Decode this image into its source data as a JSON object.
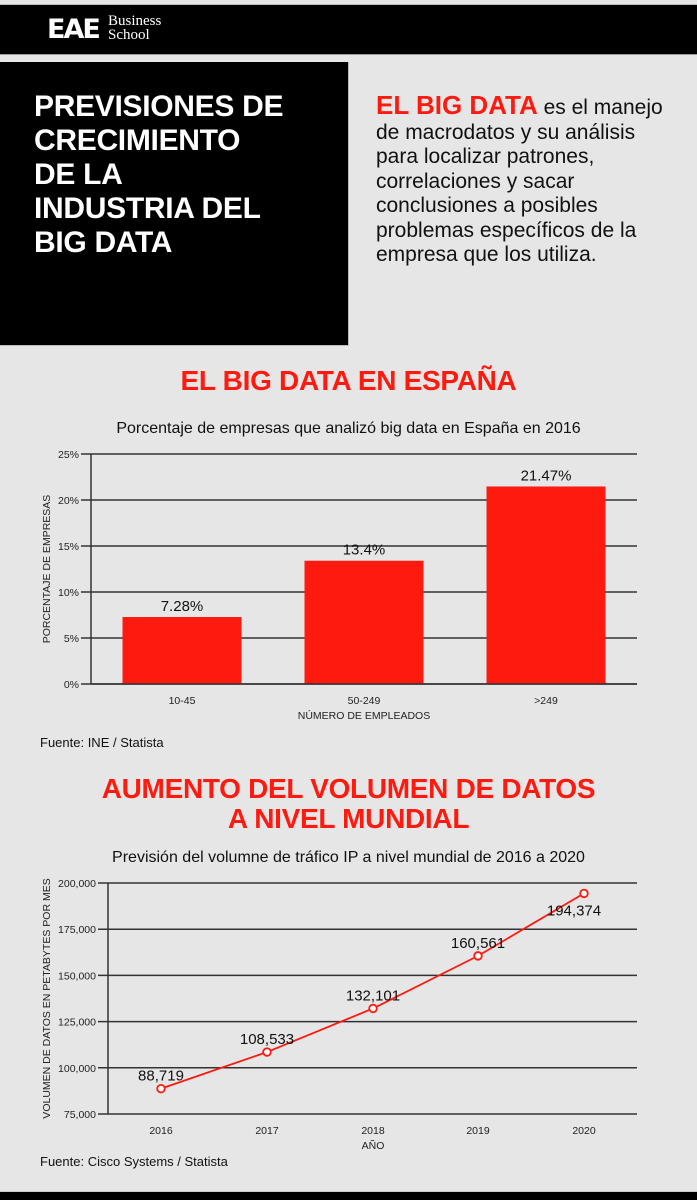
{
  "header": {
    "logo_mark": "EAE",
    "logo_line1": "Business",
    "logo_line2": "School"
  },
  "hero": {
    "title_lines": [
      "PREVISIONES DE",
      "CRECIMIENTO",
      "DE LA",
      "INDUSTRIA DEL",
      "BIG DATA"
    ],
    "intro_highlight": "EL BIG DATA",
    "intro_text": " es el manejo de macrodatos y su análisis para localizar patrones, correlaciones y sacar conclusiones a posibles problemas específicos de la empresa que los utiliza."
  },
  "colors": {
    "accent": "#ff1a10",
    "background": "#e6e6e6",
    "dark": "#000000",
    "gridline": "#333333"
  },
  "section1": {
    "title": "EL BIG DATA EN ESPAÑA",
    "source": "Fuente: INE / Statista"
  },
  "section2": {
    "title_line1": "AUMENTO DEL VOLUMEN DE DATOS",
    "title_line2": "A NIVEL MUNDIAL",
    "source": "Fuente: Cisco Systems / Statista"
  },
  "chart_data": [
    {
      "type": "bar",
      "title": "Porcentaje de empresas que analizó big data en España en 2016",
      "xlabel": "NÚMERO DE EMPLEADOS",
      "ylabel": "PORCENTAJE DE EMPRESAS",
      "categories": [
        "10-45",
        "50-249",
        ">249"
      ],
      "values": [
        7.28,
        13.4,
        21.47
      ],
      "value_labels": [
        "7.28%",
        "13.4%",
        "21.47%"
      ],
      "ylim": [
        0,
        25
      ],
      "yticks": [
        "0%",
        "5%",
        "10%",
        "15%",
        "20%",
        "25%"
      ],
      "grid": true,
      "legend": null
    },
    {
      "type": "line",
      "title": "Previsión del volumne de tráfico IP a nivel mundial de 2016 a 2020",
      "xlabel": "AÑO",
      "ylabel": "VOLUMEN DE DATOS EN PETABYTES POR MES",
      "categories": [
        "2016",
        "2017",
        "2018",
        "2019",
        "2020"
      ],
      "values": [
        88719,
        108533,
        132101,
        160561,
        194374
      ],
      "value_labels": [
        "88,719",
        "108,533",
        "132,101",
        "160,561",
        "194,374"
      ],
      "ylim": [
        75000,
        200000
      ],
      "yticks": [
        "75,000",
        "100,000",
        "125,000",
        "150,000",
        "175,000",
        "200,000"
      ],
      "grid": true,
      "legend": null
    }
  ]
}
